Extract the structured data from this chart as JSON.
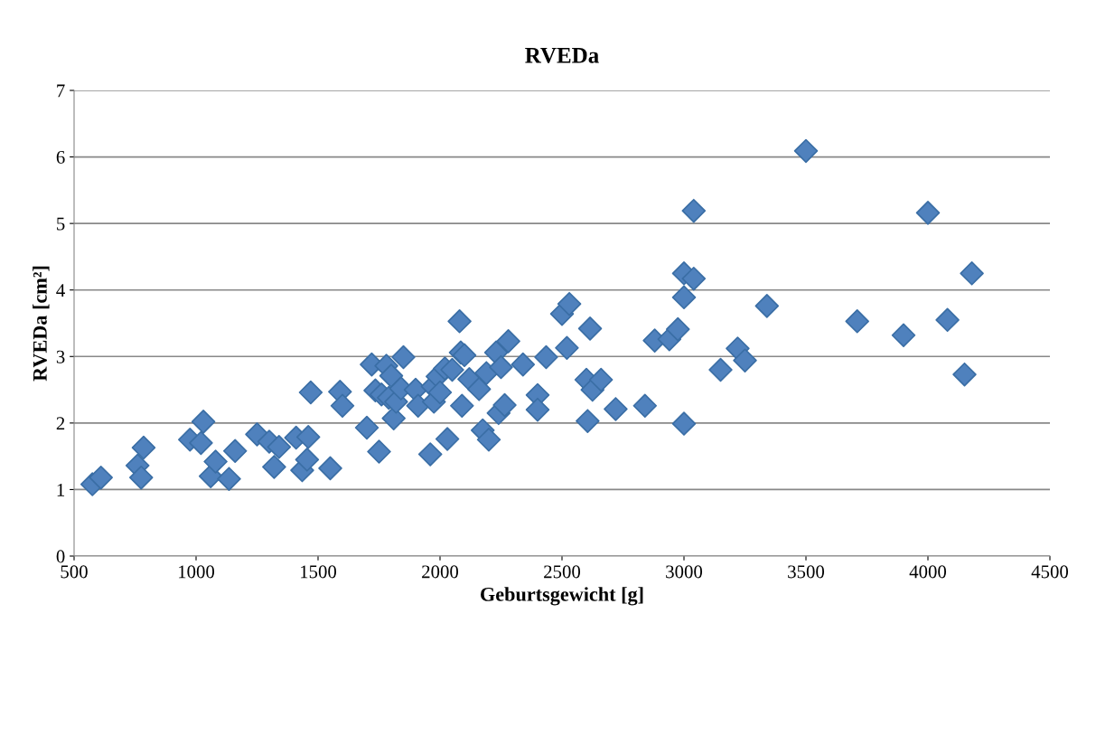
{
  "chart_data": {
    "type": "scatter",
    "title": "RVEDa",
    "xlabel": "Geburtsgewicht [g]",
    "ylabel": "RVEDa [cm²]",
    "xlim": [
      500,
      4500
    ],
    "xticks": [
      500,
      1000,
      1500,
      2000,
      2500,
      3000,
      3500,
      4000,
      4500
    ],
    "ylim": [
      0,
      7
    ],
    "yticks": [
      0,
      1,
      2,
      3,
      4,
      5,
      6,
      7
    ],
    "grid": "y",
    "marker": "diamond",
    "legend": false,
    "series": [
      {
        "color": "#4f81bd",
        "x": [
          575,
          610,
          760,
          775,
          785,
          975,
          1020,
          1030,
          1060,
          1080,
          1135,
          1160,
          1250,
          1300,
          1320,
          1340,
          1410,
          1435,
          1455,
          1460,
          1470,
          1550,
          1590,
          1600,
          1700,
          1720,
          1735,
          1750,
          1760,
          1780,
          1790,
          1800,
          1810,
          1820,
          1840,
          1850,
          1900,
          1910,
          1960,
          1970,
          1975,
          1990,
          2000,
          2020,
          2030,
          2050,
          2080,
          2085,
          2090,
          2100,
          2120,
          2160,
          2175,
          2190,
          2200,
          2230,
          2240,
          2250,
          2265,
          2280,
          2340,
          2400,
          2400,
          2435,
          2500,
          2520,
          2530,
          2600,
          2605,
          2615,
          2625,
          2660,
          2720,
          2840,
          2880,
          2940,
          2975,
          3000,
          3000,
          3000,
          3040,
          3040,
          3150,
          3220,
          3250,
          3340,
          3500,
          3710,
          3900,
          4000,
          4080,
          4150,
          4180
        ],
        "values": [
          1.08,
          1.18,
          1.36,
          1.18,
          1.63,
          1.75,
          1.7,
          2.02,
          1.2,
          1.42,
          1.16,
          1.58,
          1.83,
          1.72,
          1.34,
          1.64,
          1.78,
          1.29,
          1.45,
          1.79,
          2.46,
          1.32,
          2.47,
          2.26,
          1.93,
          2.88,
          2.49,
          1.57,
          2.43,
          2.86,
          2.38,
          2.71,
          2.07,
          2.32,
          2.52,
          2.99,
          2.5,
          2.26,
          1.53,
          2.55,
          2.32,
          2.7,
          2.46,
          2.82,
          1.76,
          2.8,
          3.53,
          3.06,
          2.26,
          3.02,
          2.66,
          2.51,
          1.89,
          2.75,
          1.75,
          3.06,
          2.15,
          2.84,
          2.27,
          3.23,
          2.88,
          2.42,
          2.2,
          2.99,
          3.64,
          3.13,
          3.79,
          2.65,
          2.03,
          3.42,
          2.5,
          2.65,
          2.21,
          2.26,
          3.24,
          3.26,
          3.41,
          4.25,
          3.89,
          1.99,
          4.17,
          5.19,
          2.8,
          3.12,
          2.94,
          3.76,
          6.09,
          3.53,
          3.32,
          5.16,
          3.55,
          2.73,
          4.25
        ]
      }
    ]
  }
}
